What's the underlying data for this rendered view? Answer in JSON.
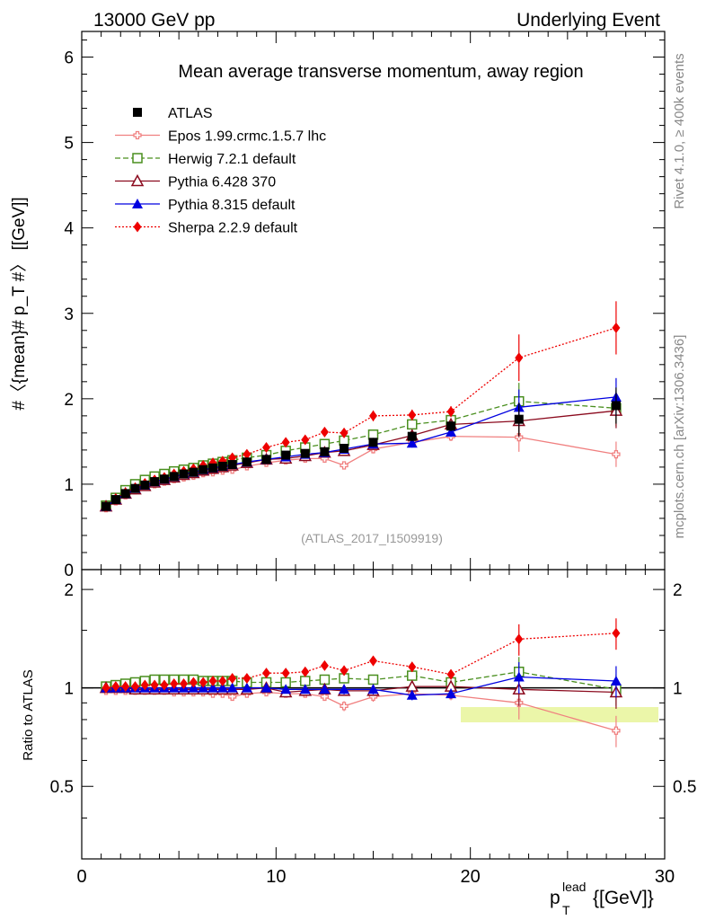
{
  "header": {
    "left": "13000 GeV pp",
    "right": "Underlying Event"
  },
  "side": {
    "top": "Rivet 4.1.0, ≥ 400k events",
    "bottom": "mcplots.cern.ch [arXiv:1306.3436]"
  },
  "chart_data": [
    {
      "type": "line",
      "panel": "main",
      "title": "Mean average transverse momentum, away region",
      "ylabel": "#〈{mean}# p_T #〉 [[GeV]]",
      "xlim": [
        0,
        30
      ],
      "ylim": [
        0,
        6.3
      ],
      "yticks": [
        0,
        1,
        2,
        3,
        4,
        5,
        6
      ],
      "xticks": [
        0,
        10,
        20,
        30
      ],
      "watermark": "(ATLAS_2017_I1509919)",
      "x": [
        1.25,
        1.75,
        2.25,
        2.75,
        3.25,
        3.75,
        4.25,
        4.75,
        5.25,
        5.75,
        6.25,
        6.75,
        7.25,
        7.75,
        8.5,
        9.5,
        10.5,
        11.5,
        12.5,
        13.5,
        15,
        17,
        19,
        22.5,
        27.5
      ],
      "series": [
        {
          "name": "ATLAS",
          "color": "#000000",
          "marker": "square",
          "values": [
            0.74,
            0.82,
            0.89,
            0.95,
            0.99,
            1.03,
            1.06,
            1.09,
            1.12,
            1.14,
            1.17,
            1.19,
            1.21,
            1.23,
            1.26,
            1.29,
            1.34,
            1.36,
            1.38,
            1.42,
            1.49,
            1.56,
            1.68,
            1.76,
            1.92
          ]
        },
        {
          "name": "Epos 1.99.crmc.1.5.7 lhc",
          "color": "#f08080",
          "marker": "cross-open",
          "values": [
            0.72,
            0.8,
            0.87,
            0.93,
            0.97,
            1.0,
            1.03,
            1.06,
            1.08,
            1.1,
            1.13,
            1.14,
            1.16,
            1.17,
            1.21,
            1.25,
            1.28,
            1.3,
            1.3,
            1.22,
            1.41,
            1.49,
            1.56,
            1.55,
            1.35
          ]
        },
        {
          "name": "Herwig 7.2.1 default",
          "color": "#4a8f1f",
          "marker": "square-open",
          "values": [
            0.75,
            0.84,
            0.93,
            1.0,
            1.05,
            1.09,
            1.12,
            1.15,
            1.17,
            1.19,
            1.22,
            1.24,
            1.26,
            1.28,
            1.31,
            1.34,
            1.39,
            1.43,
            1.47,
            1.51,
            1.58,
            1.7,
            1.75,
            1.97,
            1.89
          ]
        },
        {
          "name": "Pythia 6.428 370",
          "color": "#8b0a1e",
          "marker": "triangle-open",
          "values": [
            0.74,
            0.82,
            0.89,
            0.94,
            0.98,
            1.02,
            1.05,
            1.08,
            1.11,
            1.13,
            1.16,
            1.18,
            1.2,
            1.22,
            1.25,
            1.29,
            1.3,
            1.33,
            1.37,
            1.39,
            1.46,
            1.57,
            1.7,
            1.74,
            1.86
          ]
        },
        {
          "name": "Pythia 8.315 default",
          "color": "#0000e0",
          "marker": "triangle",
          "values": [
            0.74,
            0.82,
            0.89,
            0.95,
            0.99,
            1.03,
            1.06,
            1.09,
            1.12,
            1.14,
            1.17,
            1.19,
            1.21,
            1.23,
            1.26,
            1.29,
            1.32,
            1.35,
            1.37,
            1.41,
            1.47,
            1.48,
            1.61,
            1.9,
            2.02
          ]
        },
        {
          "name": "Sherpa 2.2.9 default",
          "color": "#ee0000",
          "marker": "diamond",
          "values": [
            0.74,
            0.83,
            0.9,
            0.96,
            1.01,
            1.05,
            1.08,
            1.12,
            1.15,
            1.18,
            1.22,
            1.25,
            1.27,
            1.31,
            1.35,
            1.43,
            1.49,
            1.52,
            1.61,
            1.6,
            1.8,
            1.81,
            1.85,
            2.48,
            2.83
          ]
        }
      ]
    },
    {
      "type": "line",
      "panel": "ratio",
      "ylabel": "Ratio to ATLAS",
      "xlabel": "p_T^lead [[GeV]]",
      "xlim": [
        0,
        30
      ],
      "ylim": [
        0.3,
        2.3
      ],
      "yticks": [
        0.5,
        1,
        2
      ],
      "xticks": [
        0,
        10,
        20,
        30
      ],
      "x": [
        1.25,
        1.75,
        2.25,
        2.75,
        3.25,
        3.75,
        4.25,
        4.75,
        5.25,
        5.75,
        6.25,
        6.75,
        7.25,
        7.75,
        8.5,
        9.5,
        10.5,
        11.5,
        12.5,
        13.5,
        15,
        17,
        19,
        22.5,
        27.5
      ],
      "series": [
        {
          "name": "Epos 1.99.crmc.1.5.7 lhc",
          "values": [
            0.98,
            0.98,
            0.98,
            0.98,
            0.98,
            0.98,
            0.98,
            0.97,
            0.97,
            0.97,
            0.97,
            0.96,
            0.96,
            0.94,
            0.96,
            0.97,
            0.96,
            0.96,
            0.94,
            0.88,
            0.94,
            0.96,
            0.95,
            0.9,
            0.74
          ]
        },
        {
          "name": "Herwig 7.2.1 default",
          "values": [
            1.01,
            1.02,
            1.03,
            1.04,
            1.05,
            1.06,
            1.06,
            1.06,
            1.06,
            1.06,
            1.05,
            1.05,
            1.05,
            1.05,
            1.04,
            1.04,
            1.04,
            1.05,
            1.06,
            1.07,
            1.06,
            1.09,
            1.04,
            1.12,
            0.99
          ]
        },
        {
          "name": "Pythia 6.428 370",
          "values": [
            1.0,
            1.0,
            1.0,
            0.99,
            0.99,
            0.99,
            0.99,
            0.99,
            0.99,
            0.99,
            0.99,
            0.99,
            0.99,
            0.99,
            0.99,
            1.0,
            0.97,
            0.98,
            0.99,
            0.98,
            0.98,
            1.01,
            1.01,
            0.99,
            0.97
          ]
        },
        {
          "name": "Pythia 8.315 default",
          "values": [
            1.0,
            1.0,
            1.0,
            1.0,
            1.0,
            1.0,
            1.0,
            1.0,
            1.0,
            1.0,
            1.0,
            1.0,
            1.0,
            1.0,
            1.0,
            1.0,
            0.99,
            0.99,
            0.99,
            0.99,
            0.99,
            0.95,
            0.96,
            1.08,
            1.05
          ]
        },
        {
          "name": "Sherpa 2.2.9 default",
          "values": [
            1.0,
            1.01,
            1.01,
            1.01,
            1.02,
            1.02,
            1.02,
            1.03,
            1.03,
            1.04,
            1.04,
            1.05,
            1.05,
            1.07,
            1.07,
            1.11,
            1.11,
            1.12,
            1.17,
            1.13,
            1.21,
            1.16,
            1.1,
            1.41,
            1.47
          ]
        }
      ]
    }
  ]
}
